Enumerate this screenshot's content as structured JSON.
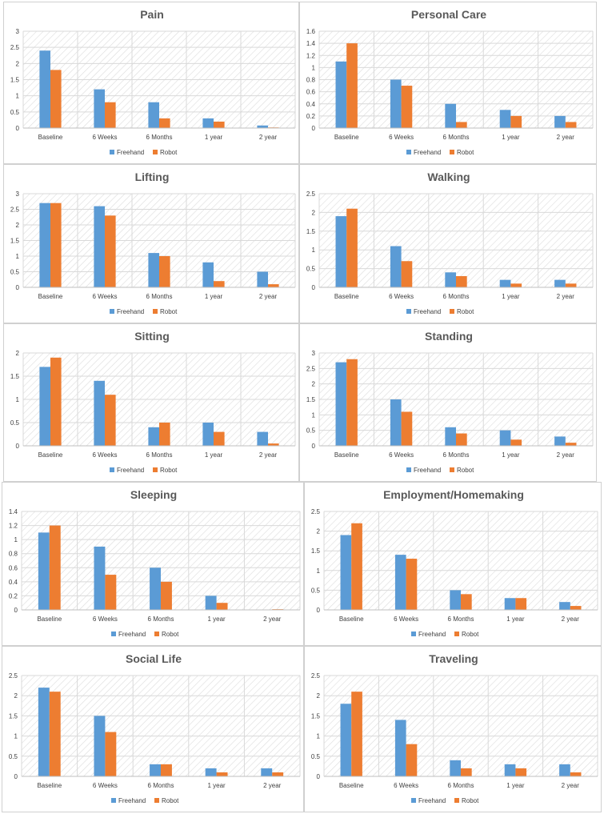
{
  "colors": {
    "freehand": "#5b9bd5",
    "robot": "#ed7d31",
    "grid": "#d9d9d9",
    "hatch": "#dcdcdc",
    "text": "#404040",
    "title": "#595959"
  },
  "legend": {
    "freehand": "Freehand",
    "robot": "Robot"
  },
  "chart_data": [
    {
      "type": "bar",
      "title": "Pain",
      "ylim": [
        0,
        3
      ],
      "yticks": [
        "0",
        "0.5",
        "1",
        "1.5",
        "2",
        "2.5",
        "3"
      ],
      "categories": [
        "Baseline",
        "6 Weeks",
        "6 Months",
        "1 year",
        "2 year"
      ],
      "series": [
        {
          "name": "Freehand",
          "values": [
            2.4,
            1.2,
            0.8,
            0.3,
            0.08
          ]
        },
        {
          "name": "Robot",
          "values": [
            1.8,
            0.8,
            0.3,
            0.2,
            0.02
          ]
        }
      ],
      "legend_position": "bottom"
    },
    {
      "type": "bar",
      "title": "Personal Care",
      "ylim": [
        0,
        1.6
      ],
      "yticks": [
        "0",
        "0.2",
        "0.4",
        "0.6",
        "0.8",
        "1",
        "1.2",
        "1.4",
        "1.6"
      ],
      "categories": [
        "Baseline",
        "6 Weeks",
        "6 Months",
        "1 year",
        "2 year"
      ],
      "series": [
        {
          "name": "Freehand",
          "values": [
            1.1,
            0.8,
            0.4,
            0.3,
            0.2
          ]
        },
        {
          "name": "Robot",
          "values": [
            1.4,
            0.7,
            0.1,
            0.2,
            0.1
          ]
        }
      ],
      "legend_position": "bottom"
    },
    {
      "type": "bar",
      "title": "Lifting",
      "ylim": [
        0,
        3
      ],
      "yticks": [
        "0",
        "0.5",
        "1",
        "1.5",
        "2",
        "2.5",
        "3"
      ],
      "categories": [
        "Baseline",
        "6 Weeks",
        "6 Months",
        "1 year",
        "2 year"
      ],
      "series": [
        {
          "name": "Freehand",
          "values": [
            2.7,
            2.6,
            1.1,
            0.8,
            0.5
          ]
        },
        {
          "name": "Robot",
          "values": [
            2.7,
            2.3,
            1.0,
            0.2,
            0.1
          ]
        }
      ],
      "legend_position": "bottom"
    },
    {
      "type": "bar",
      "title": "Walking",
      "ylim": [
        0,
        2.5
      ],
      "yticks": [
        "0",
        "0.5",
        "1",
        "1.5",
        "2",
        "2.5"
      ],
      "categories": [
        "Baseline",
        "6 Weeks",
        "6 Months",
        "1 year",
        "2 year"
      ],
      "series": [
        {
          "name": "Freehand",
          "values": [
            1.9,
            1.1,
            0.4,
            0.2,
            0.2
          ]
        },
        {
          "name": "Robot",
          "values": [
            2.1,
            0.7,
            0.3,
            0.1,
            0.1
          ]
        }
      ],
      "legend_position": "bottom"
    },
    {
      "type": "bar",
      "title": "Sitting",
      "ylim": [
        0,
        2
      ],
      "yticks": [
        "0",
        "0.5",
        "1",
        "1.5",
        "2"
      ],
      "categories": [
        "Baseline",
        "6 Weeks",
        "6 Months",
        "1 year",
        "2 year"
      ],
      "series": [
        {
          "name": "Freehand",
          "values": [
            1.7,
            1.4,
            0.4,
            0.5,
            0.3
          ]
        },
        {
          "name": "Robot",
          "values": [
            1.9,
            1.1,
            0.5,
            0.3,
            0.05
          ]
        }
      ],
      "legend_position": "bottom"
    },
    {
      "type": "bar",
      "title": "Standing",
      "ylim": [
        0,
        3
      ],
      "yticks": [
        "0",
        "0.5",
        "1",
        "1.5",
        "2",
        "2.5",
        "3"
      ],
      "categories": [
        "Baseline",
        "6 Weeks",
        "6 Months",
        "1 year",
        "2 year"
      ],
      "series": [
        {
          "name": "Freehand",
          "values": [
            2.7,
            1.5,
            0.6,
            0.5,
            0.3
          ]
        },
        {
          "name": "Robot",
          "values": [
            2.8,
            1.1,
            0.4,
            0.2,
            0.1
          ]
        }
      ],
      "legend_position": "bottom"
    },
    {
      "type": "bar",
      "title": "Sleeping",
      "ylim": [
        0,
        1.4
      ],
      "yticks": [
        "0",
        "0.2",
        "0.4",
        "0.6",
        "0.8",
        "1",
        "1.2",
        "1.4"
      ],
      "categories": [
        "Baseline",
        "6 Weeks",
        "6 Months",
        "1 year",
        "2 year"
      ],
      "series": [
        {
          "name": "Freehand",
          "values": [
            1.1,
            0.9,
            0.6,
            0.2,
            0
          ]
        },
        {
          "name": "Robot",
          "values": [
            1.2,
            0.5,
            0.4,
            0.1,
            0.01
          ]
        }
      ],
      "legend_position": "bottom"
    },
    {
      "type": "bar",
      "title": "Employment/Homemaking",
      "ylim": [
        0,
        2.5
      ],
      "yticks": [
        "0",
        "0.5",
        "1",
        "1.5",
        "2",
        "2.5"
      ],
      "categories": [
        "Baseline",
        "6 Weeks",
        "6 Months",
        "1 year",
        "2 year"
      ],
      "series": [
        {
          "name": "Freehand",
          "values": [
            1.9,
            1.4,
            0.5,
            0.3,
            0.2
          ]
        },
        {
          "name": "Robot",
          "values": [
            2.2,
            1.3,
            0.4,
            0.3,
            0.1
          ]
        }
      ],
      "legend_position": "bottom"
    },
    {
      "type": "bar",
      "title": "Social Life",
      "ylim": [
        0,
        2.5
      ],
      "yticks": [
        "0",
        "0.5",
        "1",
        "1.5",
        "2",
        "2.5"
      ],
      "categories": [
        "Baseline",
        "6 Weeks",
        "6 Months",
        "1 year",
        "2 year"
      ],
      "series": [
        {
          "name": "Freehand",
          "values": [
            2.2,
            1.5,
            0.3,
            0.2,
            0.2
          ]
        },
        {
          "name": "Robot",
          "values": [
            2.1,
            1.1,
            0.3,
            0.1,
            0.1
          ]
        }
      ],
      "legend_position": "bottom"
    },
    {
      "type": "bar",
      "title": "Traveling",
      "ylim": [
        0,
        2.5
      ],
      "yticks": [
        "0",
        "0.5",
        "1",
        "1.5",
        "2",
        "2.5"
      ],
      "categories": [
        "Baseline",
        "6 Weeks",
        "6 Months",
        "1 year",
        "2 year"
      ],
      "series": [
        {
          "name": "Freehand",
          "values": [
            1.8,
            1.4,
            0.4,
            0.3,
            0.3
          ]
        },
        {
          "name": "Robot",
          "values": [
            2.1,
            0.8,
            0.2,
            0.2,
            0.1
          ]
        }
      ],
      "legend_position": "bottom"
    }
  ]
}
